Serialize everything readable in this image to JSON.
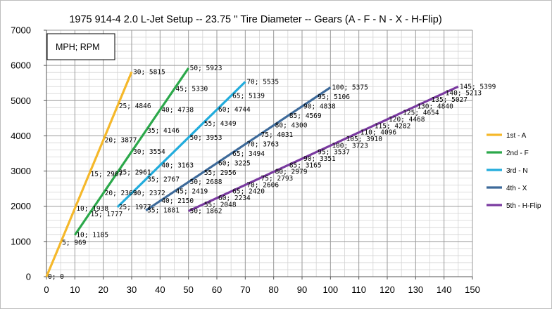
{
  "chart_data": {
    "type": "line",
    "title": "1975 914-4 2.0 L-Jet Setup -- 23.75 '' Tire Diameter -- Gears (A - F - N - X - H-Flip)",
    "annotation_box": "MPH; RPM",
    "xlim": [
      0,
      150
    ],
    "ylim": [
      0,
      7000
    ],
    "x_ticks": [
      "0",
      "10",
      "20",
      "30",
      "40",
      "50",
      "60",
      "70",
      "80",
      "90",
      "100",
      "110",
      "120",
      "130",
      "140",
      "150"
    ],
    "y_ticks": [
      "0",
      "1000",
      "2000",
      "3000",
      "4000",
      "5000",
      "6000",
      "7000"
    ],
    "grid": true,
    "legend_position": "right",
    "series": [
      {
        "name": "1st - A",
        "color": "#F5B82A",
        "points": [
          {
            "x": 0,
            "y": 0,
            "label": "0; 0"
          },
          {
            "x": 5,
            "y": 969,
            "label": "5; 969"
          },
          {
            "x": 10,
            "y": 1938,
            "label": "10; 1938"
          },
          {
            "x": 15,
            "y": 2907,
            "label": "15; 2907"
          },
          {
            "x": 20,
            "y": 3877,
            "label": "20; 3877"
          },
          {
            "x": 25,
            "y": 4846,
            "label": "25; 4846"
          },
          {
            "x": 30,
            "y": 5815,
            "label": "30; 5815"
          }
        ]
      },
      {
        "name": "2nd - F",
        "color": "#2BA84A",
        "points": [
          {
            "x": 10,
            "y": 1185,
            "label": "10; 1185"
          },
          {
            "x": 15,
            "y": 1777,
            "label": "15; 1777"
          },
          {
            "x": 20,
            "y": 2369,
            "label": "20; 2369"
          },
          {
            "x": 25,
            "y": 2961,
            "label": "25; 2961"
          },
          {
            "x": 30,
            "y": 3554,
            "label": "30; 3554"
          },
          {
            "x": 35,
            "y": 4146,
            "label": "35; 4146"
          },
          {
            "x": 40,
            "y": 4738,
            "label": "40; 4738"
          },
          {
            "x": 45,
            "y": 5330,
            "label": "45; 5330"
          },
          {
            "x": 50,
            "y": 5923,
            "label": "50; 5923"
          }
        ]
      },
      {
        "name": "3rd - N",
        "color": "#22ACDC",
        "points": [
          {
            "x": 25,
            "y": 1977,
            "label": "25; 1977"
          },
          {
            "x": 30,
            "y": 2372,
            "label": "30; 2372"
          },
          {
            "x": 35,
            "y": 2767,
            "label": "35; 2767"
          },
          {
            "x": 40,
            "y": 3163,
            "label": "40; 3163"
          },
          {
            "x": 45,
            "y": 3558,
            "label": ""
          },
          {
            "x": 50,
            "y": 3953,
            "label": "50; 3953"
          },
          {
            "x": 55,
            "y": 4349,
            "label": "55; 4349"
          },
          {
            "x": 60,
            "y": 4744,
            "label": "60; 4744"
          },
          {
            "x": 65,
            "y": 5139,
            "label": "65; 5139"
          },
          {
            "x": 70,
            "y": 5535,
            "label": "70; 5535"
          }
        ]
      },
      {
        "name": "4th - X",
        "color": "#3D6A9A",
        "points": [
          {
            "x": 35,
            "y": 1881,
            "label": "35; 1881"
          },
          {
            "x": 40,
            "y": 2150,
            "label": "40; 2150"
          },
          {
            "x": 45,
            "y": 2419,
            "label": "45; 2419"
          },
          {
            "x": 50,
            "y": 2688,
            "label": "50; 2688"
          },
          {
            "x": 55,
            "y": 2956,
            "label": "55; 2956"
          },
          {
            "x": 60,
            "y": 3225,
            "label": "60; 3225"
          },
          {
            "x": 65,
            "y": 3494,
            "label": "65; 3494"
          },
          {
            "x": 70,
            "y": 3763,
            "label": "70; 3763"
          },
          {
            "x": 75,
            "y": 4031,
            "label": "75; 4031"
          },
          {
            "x": 80,
            "y": 4300,
            "label": "80; 4300"
          },
          {
            "x": 85,
            "y": 4569,
            "label": "85; 4569"
          },
          {
            "x": 90,
            "y": 4838,
            "label": "90; 4838"
          },
          {
            "x": 95,
            "y": 5106,
            "label": "95; 5106"
          },
          {
            "x": 100,
            "y": 5375,
            "label": "100; 5375"
          }
        ]
      },
      {
        "name": "5th - H-Flip",
        "color": "#7A3AA0",
        "points": [
          {
            "x": 50,
            "y": 1862,
            "label": "50; 1862"
          },
          {
            "x": 55,
            "y": 2048,
            "label": "55; 2048"
          },
          {
            "x": 60,
            "y": 2234,
            "label": "60; 2234"
          },
          {
            "x": 65,
            "y": 2420,
            "label": "65; 2420"
          },
          {
            "x": 70,
            "y": 2606,
            "label": "70; 2606"
          },
          {
            "x": 75,
            "y": 2793,
            "label": "75; 2793"
          },
          {
            "x": 80,
            "y": 2979,
            "label": "80; 2979"
          },
          {
            "x": 85,
            "y": 3165,
            "label": "85; 3165"
          },
          {
            "x": 90,
            "y": 3351,
            "label": "90; 3351"
          },
          {
            "x": 95,
            "y": 3537,
            "label": "95; 3537"
          },
          {
            "x": 100,
            "y": 3723,
            "label": "100; 3723"
          },
          {
            "x": 105,
            "y": 3910,
            "label": "105; 3910"
          },
          {
            "x": 110,
            "y": 4096,
            "label": "110; 4096"
          },
          {
            "x": 115,
            "y": 4282,
            "label": "115; 4282"
          },
          {
            "x": 120,
            "y": 4468,
            "label": "120; 4468"
          },
          {
            "x": 125,
            "y": 4654,
            "label": "125; 4654"
          },
          {
            "x": 130,
            "y": 4840,
            "label": "130; 4840"
          },
          {
            "x": 135,
            "y": 5027,
            "label": "135; 5027"
          },
          {
            "x": 140,
            "y": 5213,
            "label": "140; 5213"
          },
          {
            "x": 145,
            "y": 5399,
            "label": "145; 5399"
          }
        ]
      }
    ]
  }
}
